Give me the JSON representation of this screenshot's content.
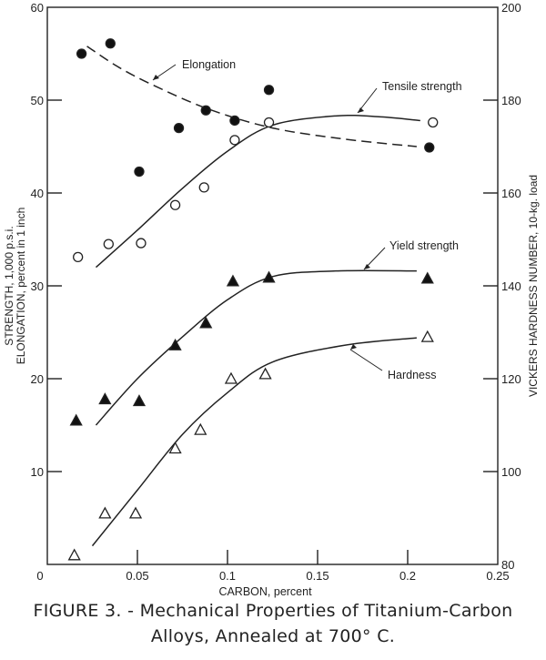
{
  "chart_data": {
    "type": "scatter",
    "caption_line1": "FIGURE 3. - Mechanical Properties of Titanium-Carbon",
    "caption_line2": "Alloys, Annealed at 700° C.",
    "xlabel": "CARBON, percent",
    "ylabel_line1": "STRENGTH, 1,000 p.s.i.",
    "ylabel_line2": "ELONGATION, percent in 1 inch",
    "y2label": "VICKERS HARDNESS NUMBER, 10-kg. load",
    "xlim": [
      0,
      0.25
    ],
    "ylim": [
      0,
      60
    ],
    "y2lim": [
      80,
      200
    ],
    "x_ticks": [
      "0",
      "0.05",
      "0.1",
      "0.15",
      "0.2",
      "0.25"
    ],
    "y_ticks": [
      "10",
      "20",
      "30",
      "40",
      "50",
      "60"
    ],
    "y2_ticks": [
      "80",
      "100",
      "120",
      "140",
      "160",
      "180",
      "200"
    ],
    "grid": false,
    "series": [
      {
        "name": "Elongation",
        "axis": "left",
        "marker": "filled-circle",
        "line": "dashed",
        "x": [
          0.019,
          0.035,
          0.051,
          0.073,
          0.088,
          0.104,
          0.123,
          0.212
        ],
        "y": [
          55.0,
          56.1,
          42.3,
          47.0,
          48.9,
          47.8,
          51.1,
          44.9
        ],
        "curve": [
          [
            0.022,
            55.8
          ],
          [
            0.04,
            53.5
          ],
          [
            0.06,
            51.5
          ],
          [
            0.09,
            49.0
          ],
          [
            0.125,
            47.0
          ],
          [
            0.165,
            45.8
          ],
          [
            0.205,
            45.0
          ]
        ]
      },
      {
        "name": "Tensile strength",
        "axis": "left",
        "marker": "open-circle",
        "line": "solid",
        "x": [
          0.017,
          0.034,
          0.052,
          0.071,
          0.087,
          0.104,
          0.123,
          0.214
        ],
        "y": [
          33.1,
          34.5,
          34.6,
          38.7,
          40.6,
          45.7,
          47.6,
          47.6
        ],
        "curve": [
          [
            0.027,
            32.0
          ],
          [
            0.05,
            36.0
          ],
          [
            0.075,
            40.5
          ],
          [
            0.1,
            44.5
          ],
          [
            0.125,
            47.3
          ],
          [
            0.16,
            48.3
          ],
          [
            0.185,
            48.2
          ],
          [
            0.207,
            47.8
          ]
        ]
      },
      {
        "name": "Yield strength",
        "axis": "left",
        "marker": "filled-triangle",
        "line": "solid",
        "x": [
          0.016,
          0.032,
          0.051,
          0.071,
          0.088,
          0.103,
          0.123,
          0.211
        ],
        "y": [
          15.5,
          17.8,
          17.6,
          23.6,
          26.0,
          30.5,
          30.9,
          30.8
        ],
        "curve": [
          [
            0.027,
            15.0
          ],
          [
            0.05,
            20.0
          ],
          [
            0.075,
            24.5
          ],
          [
            0.1,
            28.5
          ],
          [
            0.125,
            31.0
          ],
          [
            0.16,
            31.6
          ],
          [
            0.205,
            31.6
          ]
        ]
      },
      {
        "name": "Hardness",
        "axis": "right",
        "marker": "open-triangle",
        "line": "solid",
        "x": [
          0.015,
          0.032,
          0.049,
          0.071,
          0.085,
          0.102,
          0.121,
          0.211
        ],
        "y": [
          82,
          91,
          91,
          105,
          109,
          120,
          121,
          129
        ],
        "curve": [
          [
            0.025,
            84
          ],
          [
            0.05,
            96
          ],
          [
            0.075,
            108
          ],
          [
            0.1,
            117
          ],
          [
            0.125,
            123.6
          ],
          [
            0.165,
            127.2
          ],
          [
            0.205,
            128.8
          ]
        ]
      }
    ]
  }
}
